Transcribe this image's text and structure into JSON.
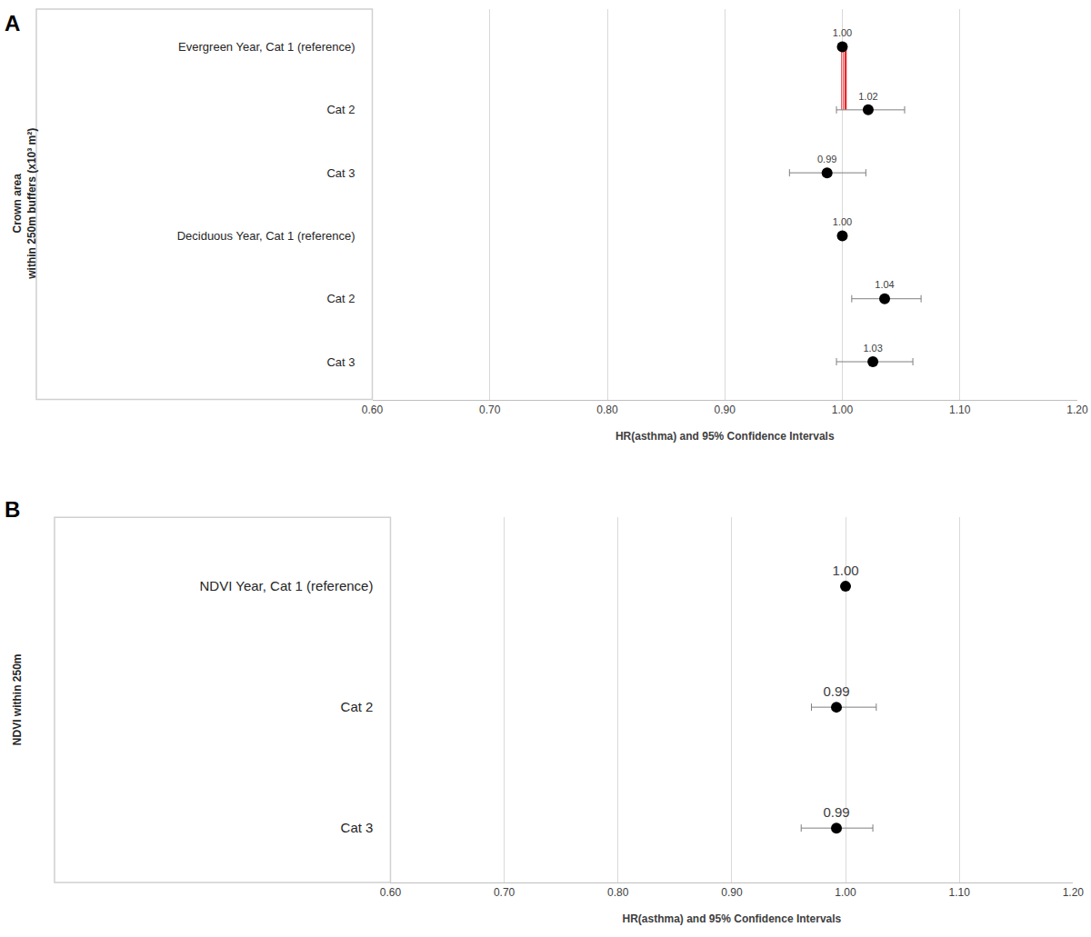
{
  "chart_data": [
    {
      "type": "forest",
      "panel_label": "A",
      "y_label": [
        "Crown area",
        "within 250m buffers (x10³ m²)"
      ],
      "x_label": "HR(asthma) and 95% Confidence Intervals",
      "categories": [
        "Evergreen Year, Cat 1 (reference)",
        "Cat 2",
        "Cat 3",
        "Deciduous Year, Cat 1 (reference)",
        "Cat 2",
        "Cat 3"
      ],
      "values": [
        1.0,
        1.022,
        0.987,
        1.0,
        1.036,
        1.026
      ],
      "value_labels": [
        "1.00",
        "1.02",
        "0.99",
        "1.00",
        "1.04",
        "1.03"
      ],
      "ci_low": [
        null,
        0.995,
        0.955,
        null,
        1.008,
        0.995
      ],
      "ci_high": [
        null,
        1.053,
        1.02,
        null,
        1.067,
        1.06
      ],
      "xlim": [
        0.6,
        1.2
      ],
      "xticks": [
        {
          "value": 0.6,
          "label": "0.60"
        },
        {
          "value": 0.7,
          "label": "0.70"
        },
        {
          "value": 0.8,
          "label": "0.80"
        },
        {
          "value": 0.9,
          "label": "0.90"
        },
        {
          "value": 1.0,
          "label": "1.00"
        },
        {
          "value": 1.1,
          "label": "1.10"
        },
        {
          "value": 1.2,
          "label": "1.20"
        }
      ],
      "grid": true,
      "data_labels": true,
      "color": "#000000",
      "reference_line": {
        "value": 1,
        "color": "#e8262b"
      }
    },
    {
      "type": "forest",
      "panel_label": "B",
      "y_label": [
        "NDVI within 250m"
      ],
      "x_label": "HR(asthma) and 95% Confidence Intervals",
      "categories": [
        "NDVI Year, Cat 1 (reference)",
        "Cat 2",
        "Cat 3"
      ],
      "values": [
        1.0,
        0.992,
        0.992
      ],
      "value_labels": [
        "1.00",
        "0.99",
        "0.99"
      ],
      "ci_low": [
        null,
        0.97,
        0.961
      ],
      "ci_high": [
        null,
        1.027,
        1.024
      ],
      "xlim": [
        0.6,
        1.2
      ],
      "xticks": [
        {
          "value": 0.6,
          "label": "0.60"
        },
        {
          "value": 0.7,
          "label": "0.70"
        },
        {
          "value": 0.8,
          "label": "0.80"
        },
        {
          "value": 0.9,
          "label": "0.90"
        },
        {
          "value": 1.0,
          "label": "1.00"
        },
        {
          "value": 1.1,
          "label": "1.10"
        },
        {
          "value": 1.2,
          "label": "1.20"
        }
      ],
      "grid": true,
      "data_labels": true,
      "color": "#000000",
      "reference_line": {
        "value": 1,
        "color": "#e8262b"
      }
    }
  ]
}
